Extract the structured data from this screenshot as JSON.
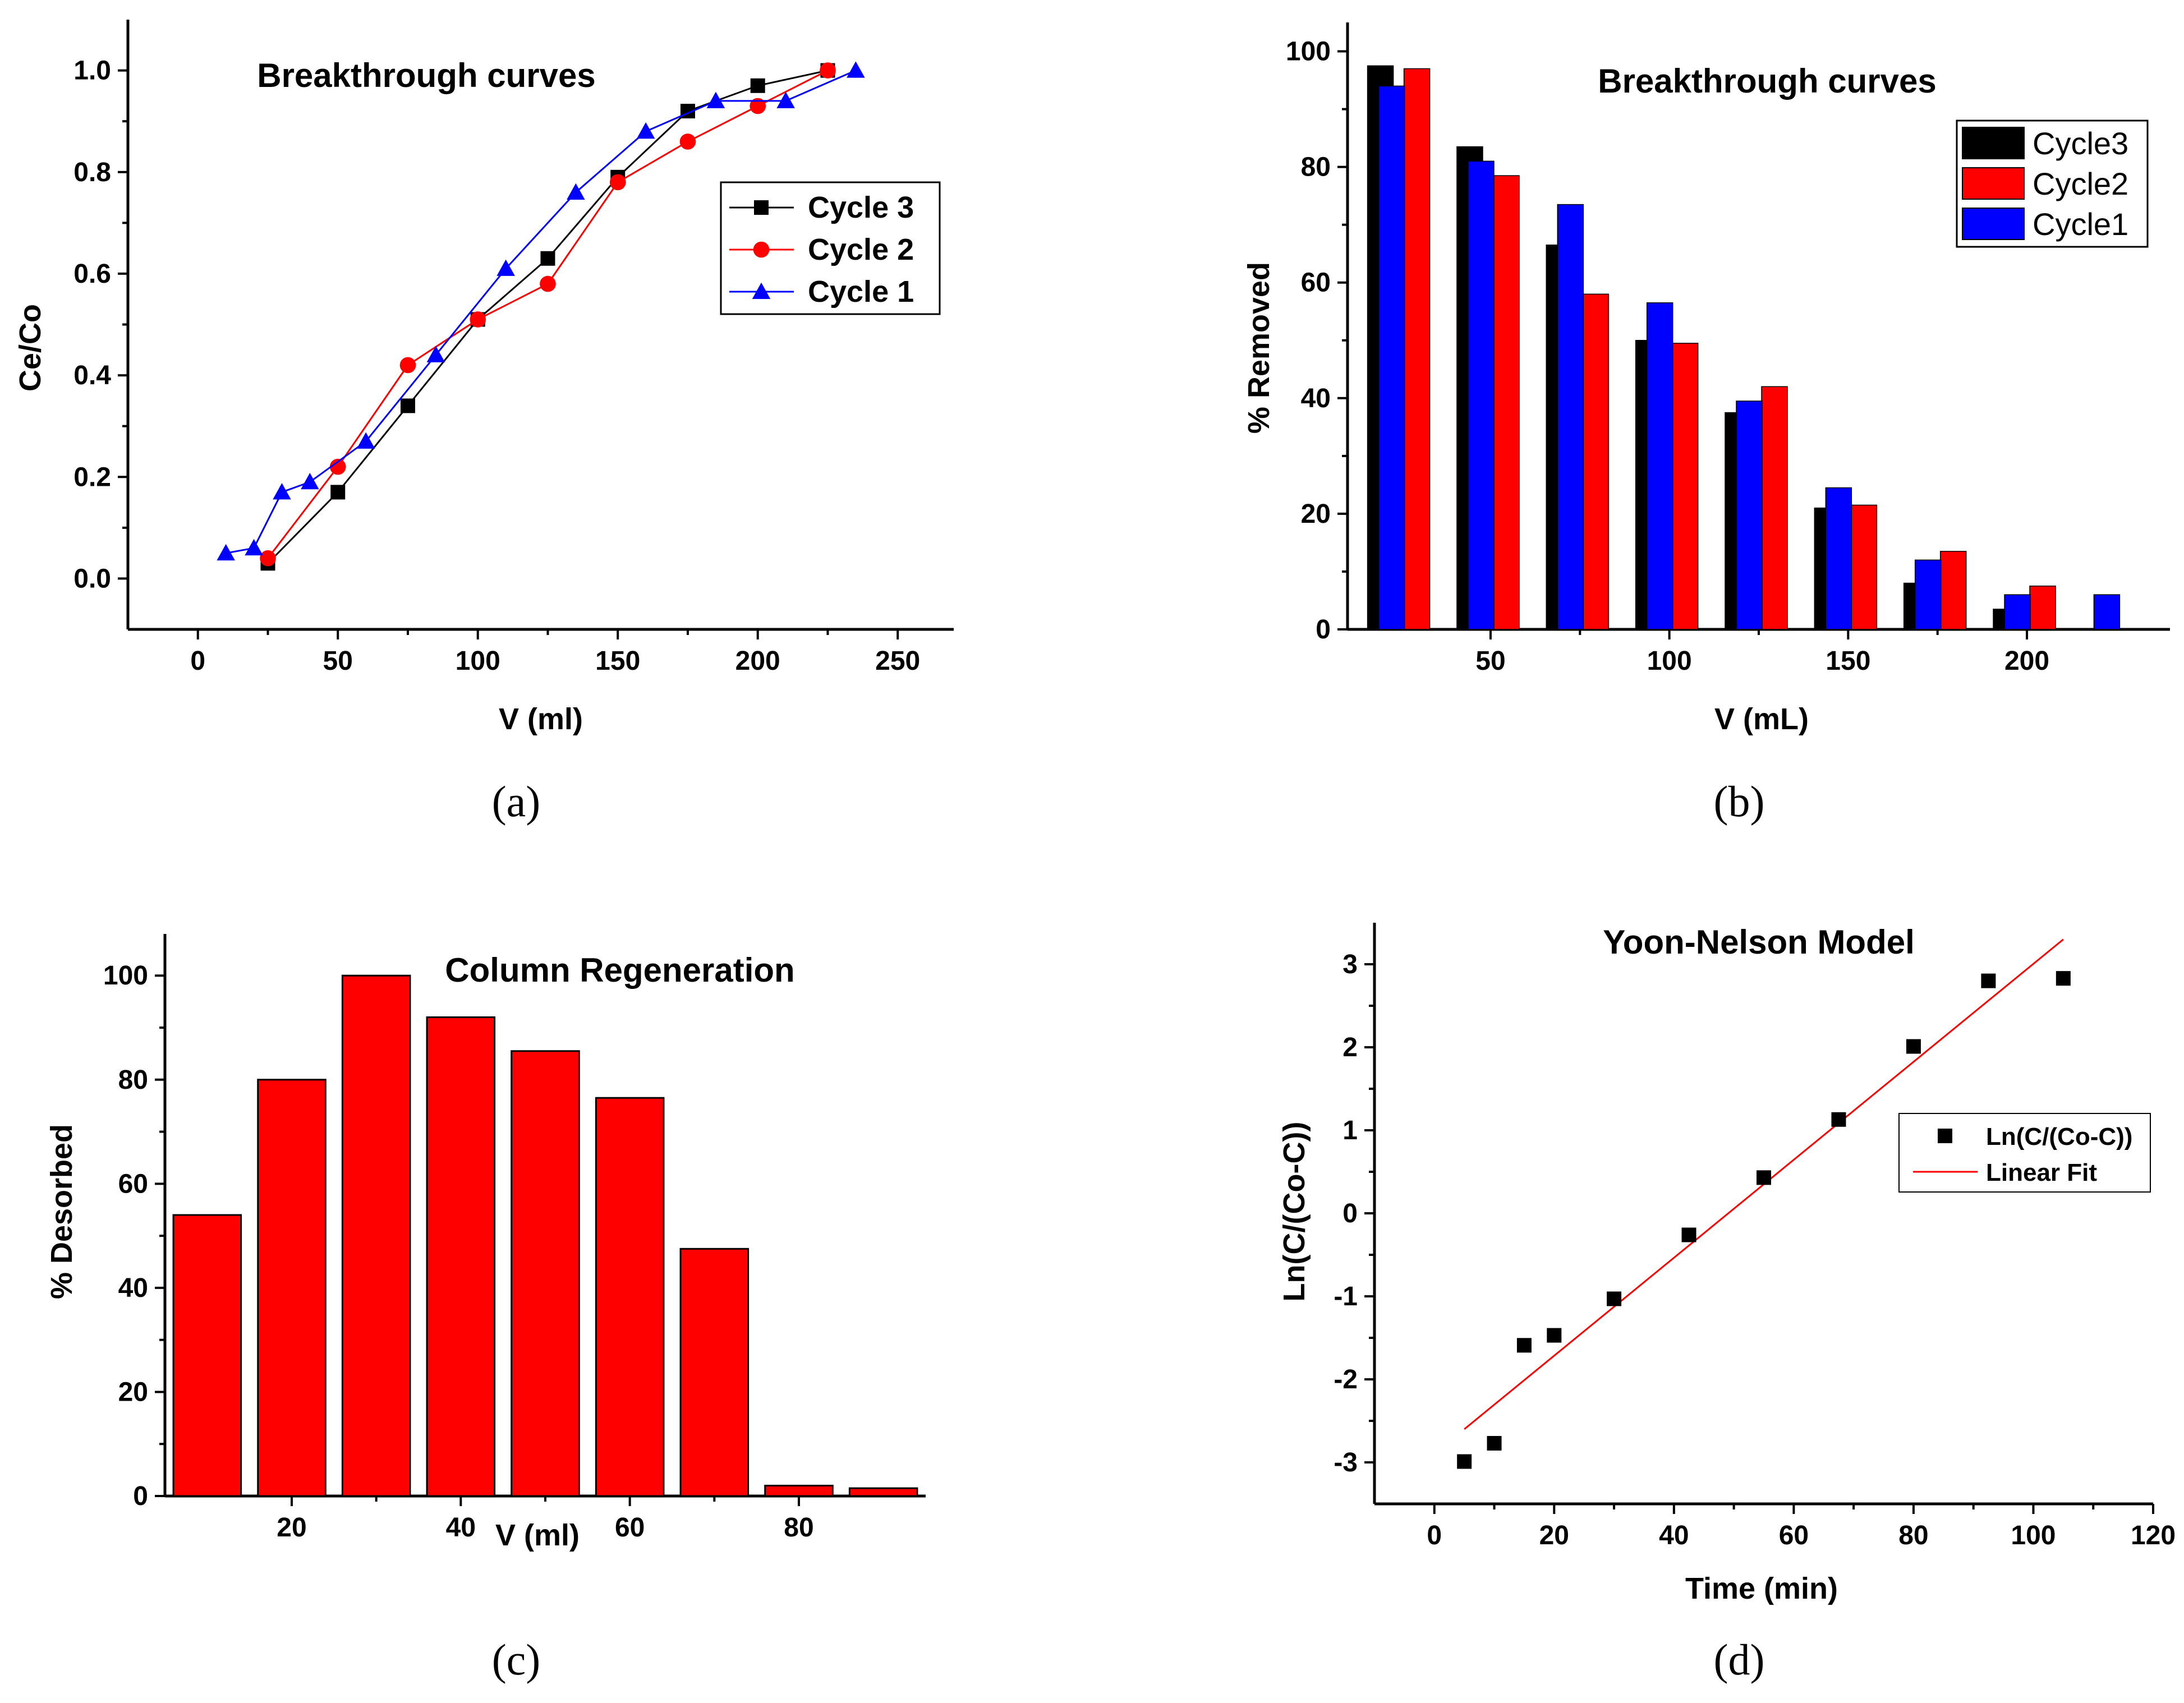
{
  "chart_data": [
    {
      "type": "line",
      "title": "Breakthrough curves",
      "xlabel": "V (ml)",
      "ylabel": "Ce/Co",
      "xlim": [
        -25,
        270
      ],
      "ylim": [
        -0.1,
        1.1
      ],
      "xticks": [
        0,
        50,
        100,
        150,
        200,
        250
      ],
      "yticks": [
        0.0,
        0.2,
        0.4,
        0.6,
        0.8,
        1.0
      ],
      "legend_position": "top-right",
      "panel_label": "(a)",
      "series": [
        {
          "name": "Cycle 3",
          "color": "#000000",
          "marker": "square",
          "x": [
            25,
            50,
            75,
            100,
            125,
            150,
            175,
            200,
            225
          ],
          "y": [
            0.03,
            0.17,
            0.34,
            0.51,
            0.63,
            0.79,
            0.92,
            0.97,
            1.0
          ]
        },
        {
          "name": "Cycle 2",
          "color": "#ff0000",
          "marker": "circle",
          "x": [
            25,
            50,
            75,
            100,
            125,
            150,
            175,
            200,
            225
          ],
          "y": [
            0.04,
            0.22,
            0.42,
            0.51,
            0.58,
            0.78,
            0.86,
            0.93,
            1.0
          ]
        },
        {
          "name": "Cycle 1",
          "color": "#0000ff",
          "marker": "triangle",
          "x": [
            10,
            20,
            30,
            40,
            60,
            85,
            110,
            135,
            160,
            185,
            210,
            235
          ],
          "y": [
            0.05,
            0.06,
            0.17,
            0.19,
            0.27,
            0.44,
            0.61,
            0.76,
            0.88,
            0.94,
            0.94,
            1.0
          ]
        }
      ]
    },
    {
      "type": "bar",
      "title": "Breakthrough curves",
      "xlabel": "V (mL)",
      "ylabel": "% Removed",
      "xlim": [
        10,
        240
      ],
      "ylim": [
        0,
        105
      ],
      "xticks": [
        50,
        100,
        150,
        200
      ],
      "yticks": [
        0,
        20,
        40,
        60,
        80,
        100
      ],
      "legend_position": "top-right",
      "panel_label": "(b)",
      "categories": [
        25,
        50,
        75,
        100,
        125,
        150,
        175,
        200,
        225
      ],
      "series": [
        {
          "name": "Cycle3",
          "color": "#000000",
          "values": [
            97.5,
            83.5,
            66.5,
            50.0,
            37.5,
            21.0,
            8.0,
            3.5,
            null
          ]
        },
        {
          "name": "Cycle2",
          "color": "#ff0000",
          "values": [
            97.0,
            78.5,
            58.0,
            49.5,
            42.0,
            21.5,
            13.5,
            7.5,
            null
          ]
        },
        {
          "name": "Cycle1",
          "color": "#0000ff",
          "values": [
            94.0,
            81.0,
            73.5,
            56.5,
            39.5,
            24.5,
            12.0,
            6.0,
            6.0
          ]
        }
      ]
    },
    {
      "type": "bar",
      "title": "Column Regeneration",
      "xlabel": "V (ml)",
      "ylabel": "% Desorbed",
      "xlim": [
        5,
        95
      ],
      "ylim": [
        0,
        108
      ],
      "xticks": [
        20,
        40,
        60,
        80
      ],
      "yticks": [
        0,
        20,
        40,
        60,
        80,
        100
      ],
      "panel_label": "(c)",
      "series": [
        {
          "name": "% Desorbed",
          "color": "#ff0000",
          "x": [
            10,
            20,
            30,
            40,
            50,
            60,
            70,
            80,
            90
          ],
          "values": [
            54.0,
            80.0,
            100.0,
            92.0,
            85.5,
            76.5,
            47.5,
            2.0,
            1.5
          ]
        }
      ]
    },
    {
      "type": "scatter",
      "title": "Yoon-Nelson Model",
      "xlabel": "Time (min)",
      "ylabel": "Ln(C/(Co-C))",
      "xlim": [
        -10,
        120
      ],
      "ylim": [
        -3.5,
        3.5
      ],
      "xticks": [
        0,
        20,
        40,
        60,
        80,
        100,
        120
      ],
      "yticks": [
        -3,
        -2,
        -1,
        0,
        1,
        2,
        3
      ],
      "legend_position": "right",
      "panel_label": "(d)",
      "series": [
        {
          "name": "Ln(C/(Co-C))",
          "color": "#000000",
          "marker": "square",
          "x": [
            5,
            10,
            15,
            20,
            30,
            42.5,
            55,
            67.5,
            80,
            92.5,
            105
          ],
          "y": [
            -2.99,
            -2.77,
            -1.59,
            -1.47,
            -1.03,
            -0.26,
            0.43,
            1.13,
            2.01,
            2.8,
            2.83
          ]
        },
        {
          "name": "Linear Fit",
          "color": "#ff0000",
          "type": "line",
          "x": [
            5,
            105
          ],
          "y": [
            -2.6,
            3.3
          ]
        }
      ]
    }
  ]
}
